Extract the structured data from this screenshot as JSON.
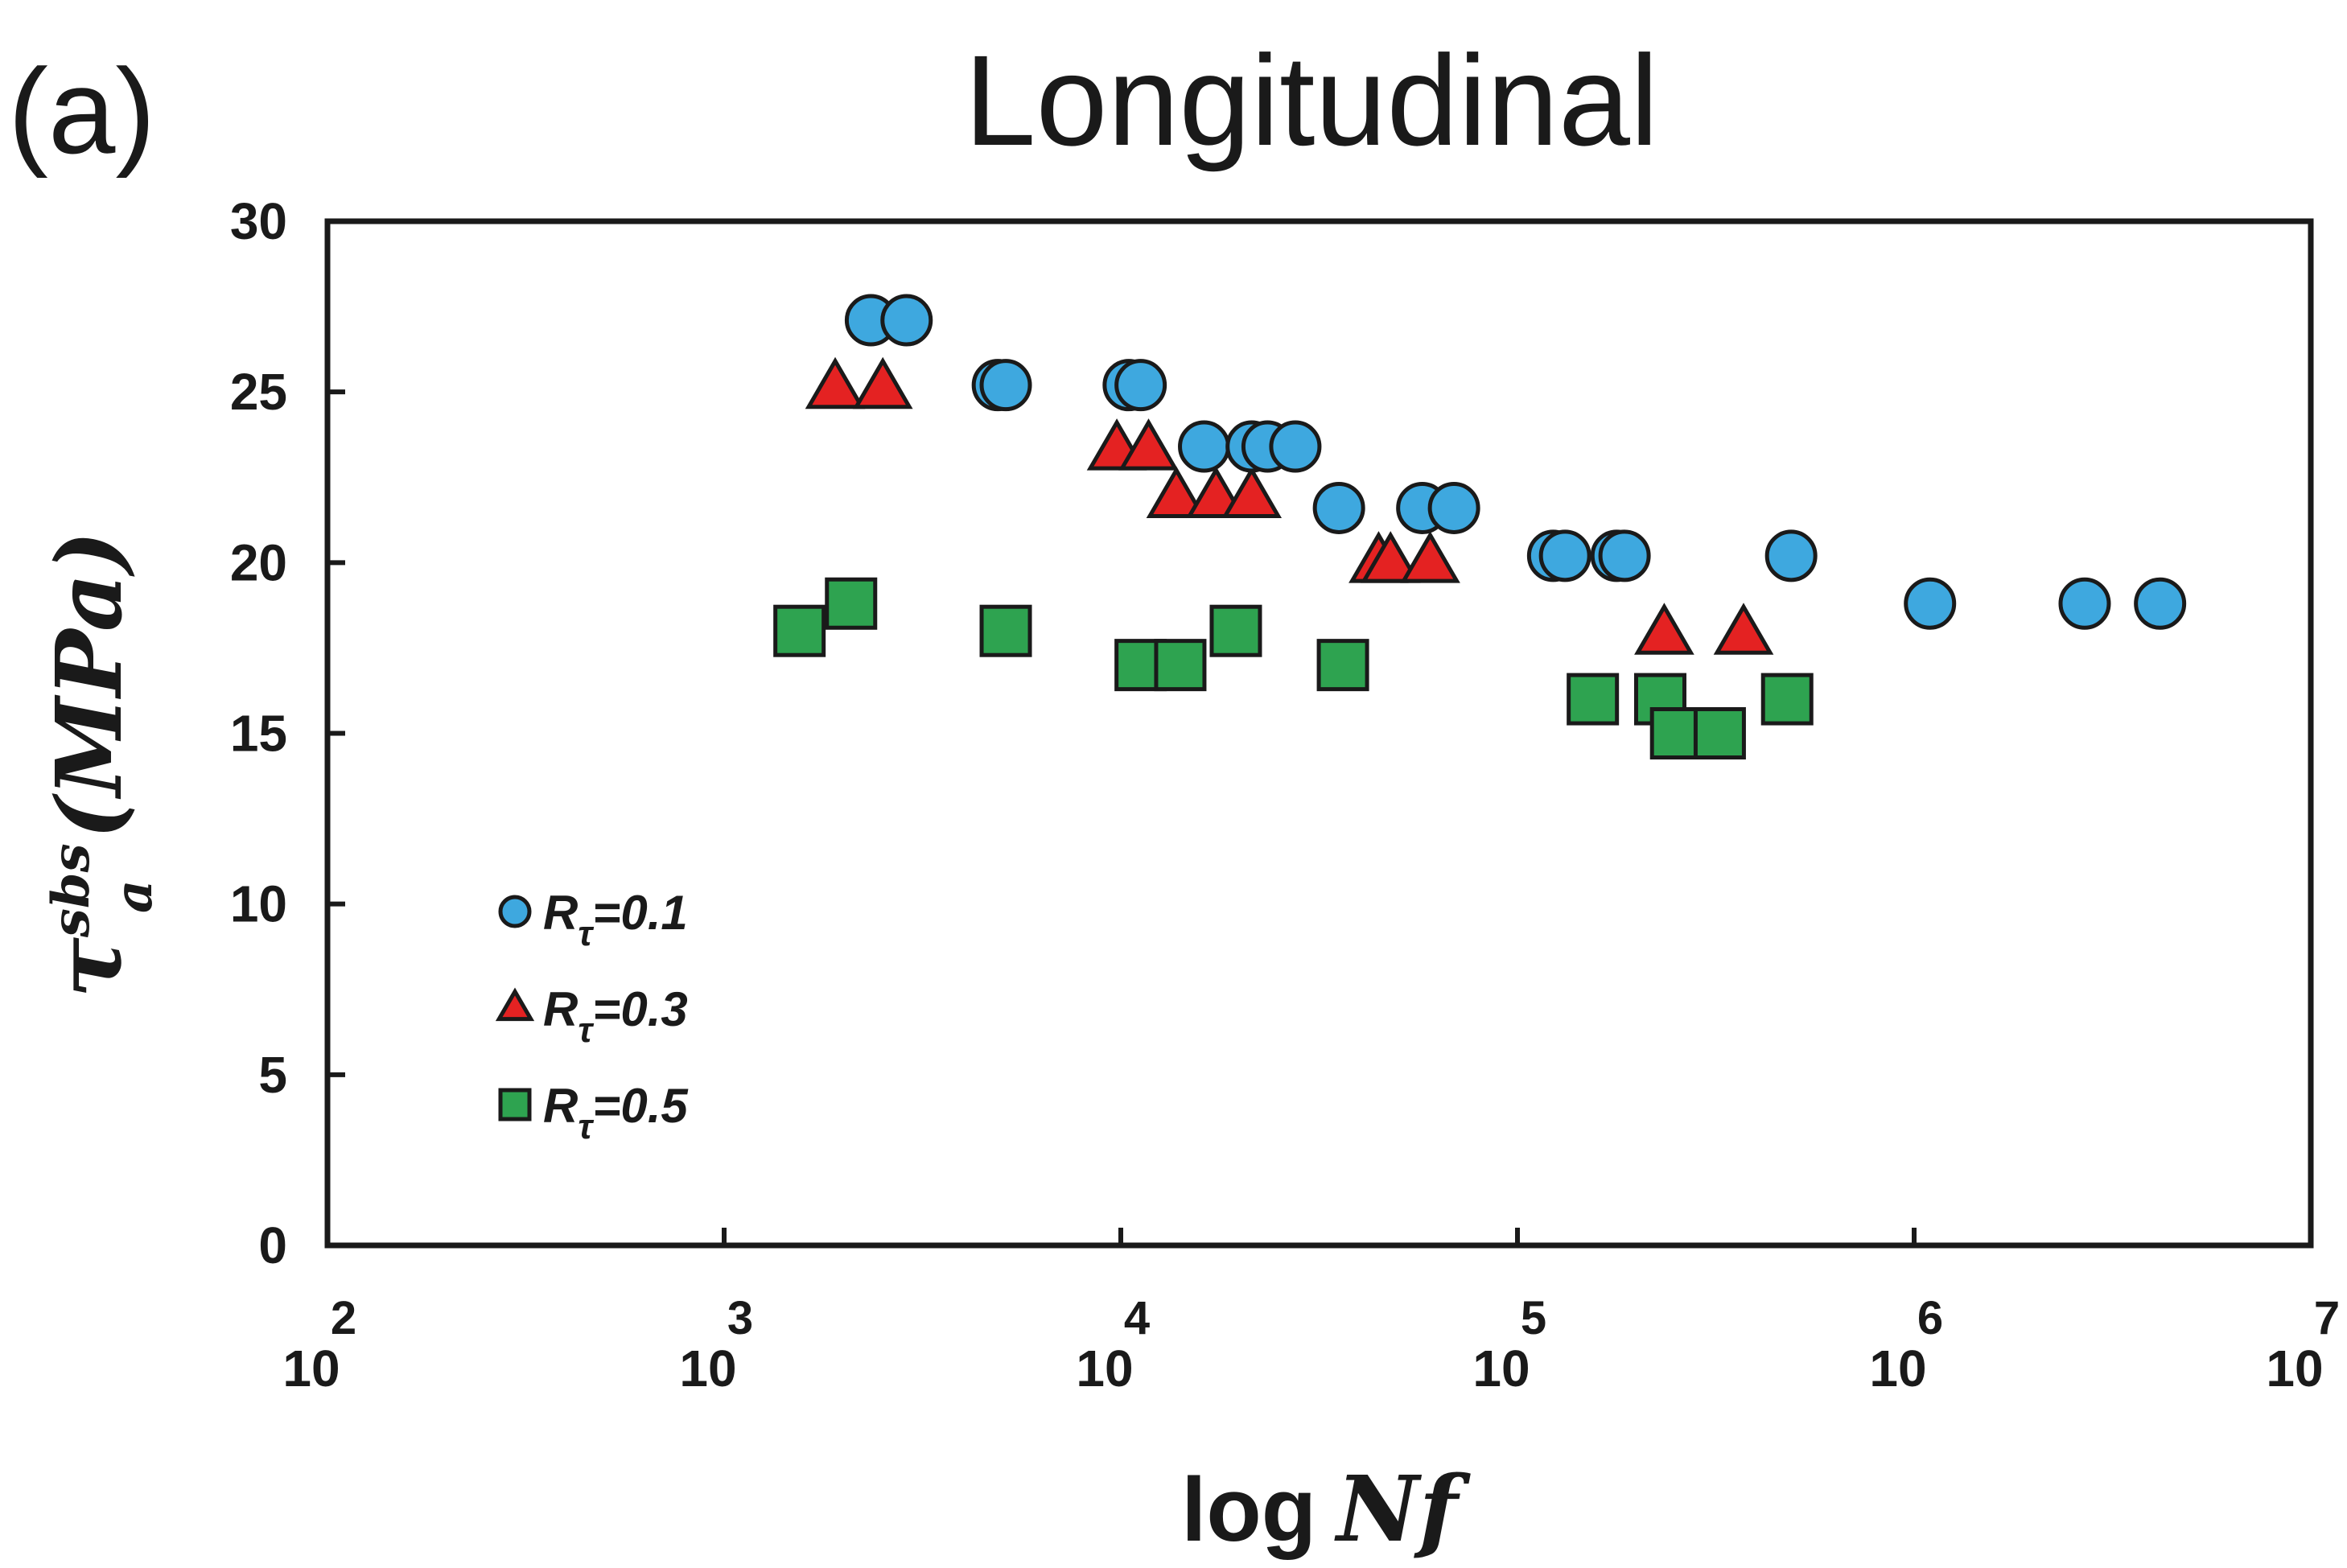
{
  "panel_label": "(a)",
  "chart_data": {
    "type": "scatter",
    "title": "Longitudinal",
    "xlabel": {
      "prefix": "log",
      "var": "Nf"
    },
    "ylabel": {
      "symbol": "τ",
      "sup": "sbs",
      "sub": "a",
      "unit": "(MPa)"
    },
    "x_scale": "log10",
    "xlim_exponents": [
      2,
      7
    ],
    "x_tick_base": "10",
    "x_tick_exponents": [
      "2",
      "3",
      "4",
      "5",
      "6",
      "7"
    ],
    "ylim": [
      0,
      30
    ],
    "y_ticks": [
      "0",
      "5",
      "10",
      "15",
      "20",
      "25",
      "30"
    ],
    "grid": false,
    "legend_position": "bottom-left",
    "series": [
      {
        "name": "Rτ=0.1",
        "label_main": "R",
        "label_sub": "τ",
        "label_value": "=0.1",
        "marker": "circle",
        "color": "#3ea8df",
        "points": [
          {
            "log_nf": 3.37,
            "tau": 27.1
          },
          {
            "log_nf": 3.46,
            "tau": 27.1
          },
          {
            "log_nf": 3.69,
            "tau": 25.2
          },
          {
            "log_nf": 3.71,
            "tau": 25.2
          },
          {
            "log_nf": 4.02,
            "tau": 25.2
          },
          {
            "log_nf": 4.05,
            "tau": 25.2
          },
          {
            "log_nf": 4.21,
            "tau": 23.4
          },
          {
            "log_nf": 4.33,
            "tau": 23.4
          },
          {
            "log_nf": 4.37,
            "tau": 23.4
          },
          {
            "log_nf": 4.44,
            "tau": 23.4
          },
          {
            "log_nf": 4.55,
            "tau": 21.6
          },
          {
            "log_nf": 4.76,
            "tau": 21.6
          },
          {
            "log_nf": 4.84,
            "tau": 21.6
          },
          {
            "log_nf": 5.09,
            "tau": 20.2
          },
          {
            "log_nf": 5.12,
            "tau": 20.2
          },
          {
            "log_nf": 5.25,
            "tau": 20.2
          },
          {
            "log_nf": 5.27,
            "tau": 20.2
          },
          {
            "log_nf": 5.69,
            "tau": 20.2
          },
          {
            "log_nf": 6.04,
            "tau": 18.8
          },
          {
            "log_nf": 6.43,
            "tau": 18.8
          },
          {
            "log_nf": 6.62,
            "tau": 18.8
          }
        ]
      },
      {
        "name": "Rτ=0.3",
        "label_main": "R",
        "label_sub": "τ",
        "label_value": "=0.3",
        "marker": "triangle",
        "color": "#e42222",
        "points": [
          {
            "log_nf": 3.28,
            "tau": 25.1
          },
          {
            "log_nf": 3.4,
            "tau": 25.1
          },
          {
            "log_nf": 3.99,
            "tau": 23.3
          },
          {
            "log_nf": 4.07,
            "tau": 23.3
          },
          {
            "log_nf": 4.14,
            "tau": 21.9
          },
          {
            "log_nf": 4.24,
            "tau": 21.9
          },
          {
            "log_nf": 4.33,
            "tau": 21.9
          },
          {
            "log_nf": 4.65,
            "tau": 20.0
          },
          {
            "log_nf": 4.68,
            "tau": 20.0
          },
          {
            "log_nf": 4.78,
            "tau": 20.0
          },
          {
            "log_nf": 5.37,
            "tau": 17.9
          },
          {
            "log_nf": 5.57,
            "tau": 17.9
          }
        ]
      },
      {
        "name": "Rτ=0.5",
        "label_main": "R",
        "label_sub": "τ",
        "label_value": "=0.5",
        "marker": "square",
        "color": "#2ea350",
        "points": [
          {
            "log_nf": 3.19,
            "tau": 18.0
          },
          {
            "log_nf": 3.32,
            "tau": 18.8
          },
          {
            "log_nf": 3.71,
            "tau": 18.0
          },
          {
            "log_nf": 4.05,
            "tau": 17.0
          },
          {
            "log_nf": 4.15,
            "tau": 17.0
          },
          {
            "log_nf": 4.29,
            "tau": 18.0
          },
          {
            "log_nf": 4.56,
            "tau": 17.0
          },
          {
            "log_nf": 5.19,
            "tau": 16.0
          },
          {
            "log_nf": 5.36,
            "tau": 16.0
          },
          {
            "log_nf": 5.4,
            "tau": 15.0
          },
          {
            "log_nf": 5.51,
            "tau": 15.0
          },
          {
            "log_nf": 5.68,
            "tau": 16.0
          }
        ]
      }
    ]
  }
}
